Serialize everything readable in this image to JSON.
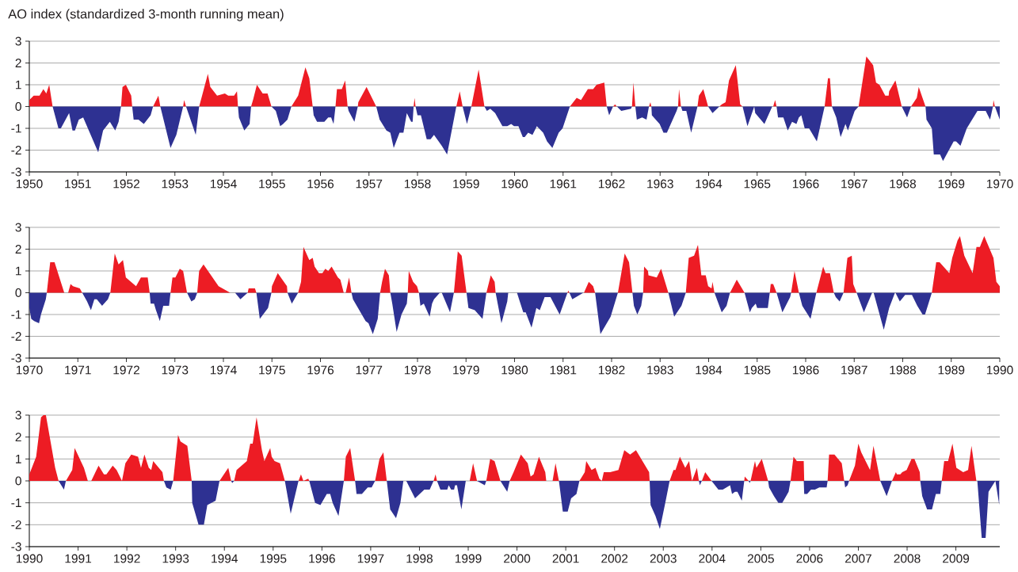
{
  "chart_data": [
    {
      "type": "area",
      "title": "AO index (standardized 3-month running mean)",
      "xlim": [
        1950,
        1970
      ],
      "ylim": [
        -3,
        3
      ],
      "xticks": [
        1950,
        1951,
        1952,
        1953,
        1954,
        1955,
        1956,
        1957,
        1958,
        1959,
        1960,
        1961,
        1962,
        1963,
        1964,
        1965,
        1966,
        1967,
        1968,
        1969,
        1970
      ],
      "yticks": [
        -3,
        -2,
        -1,
        0,
        1,
        2,
        3
      ],
      "grid": "y",
      "x": [
        1950.0,
        1950.09,
        1950.21,
        1950.29,
        1950.35,
        1950.41,
        1950.48,
        1950.6,
        1950.65,
        1950.82,
        1950.89,
        1950.94,
        1951.02,
        1951.11,
        1951.42,
        1951.52,
        1951.66,
        1951.77,
        1951.84,
        1951.89,
        1951.92,
        1951.99,
        1952.1,
        1952.12,
        1952.15,
        1952.25,
        1952.36,
        1952.5,
        1952.55,
        1952.66,
        1952.7,
        1952.91,
        1953.03,
        1953.17,
        1953.19,
        1953.23,
        1953.43,
        1953.5,
        1953.68,
        1953.73,
        1953.87,
        1954.03,
        1954.1,
        1954.22,
        1954.28,
        1954.3,
        1954.32,
        1954.43,
        1954.54,
        1954.57,
        1954.61,
        1954.69,
        1954.81,
        1954.91,
        1954.99,
        1955.08,
        1955.17,
        1955.23,
        1955.32,
        1955.4,
        1955.54,
        1955.69,
        1955.77,
        1955.84,
        1955.86,
        1955.93,
        1956.08,
        1956.16,
        1956.22,
        1956.27,
        1956.31,
        1956.34,
        1956.44,
        1956.51,
        1956.56,
        1956.58,
        1956.7,
        1956.77,
        1956.78,
        1956.95,
        1957.15,
        1957.22,
        1957.36,
        1957.44,
        1957.51,
        1957.63,
        1957.71,
        1957.78,
        1957.87,
        1957.9,
        1957.92,
        1957.94,
        1957.96,
        1958.0,
        1958.07,
        1958.19,
        1958.27,
        1958.34,
        1958.5,
        1958.61,
        1958.8,
        1958.87,
        1958.93,
        1959.02,
        1959.11,
        1959.26,
        1959.38,
        1959.43,
        1959.5,
        1959.6,
        1959.75,
        1959.85,
        1959.93,
        1959.99,
        1960.08,
        1960.17,
        1960.21,
        1960.28,
        1960.37,
        1960.46,
        1960.59,
        1960.67,
        1960.78,
        1960.91,
        1960.99,
        1961.14,
        1961.28,
        1961.37,
        1961.51,
        1961.62,
        1961.69,
        1961.85,
        1961.9,
        1961.95,
        1962.03,
        1962.07,
        1962.11,
        1962.2,
        1962.4,
        1962.42,
        1962.45,
        1962.49,
        1962.52,
        1962.63,
        1962.72,
        1962.77,
        1962.8,
        1962.82,
        1962.83,
        1962.99,
        1963.07,
        1963.14,
        1963.34,
        1963.37,
        1963.39,
        1963.43,
        1963.46,
        1963.54,
        1963.64,
        1963.77,
        1963.8,
        1963.89,
        1963.99,
        1964.08,
        1964.22,
        1964.27,
        1964.35,
        1964.42,
        1964.56,
        1964.65,
        1964.7,
        1964.8,
        1964.94,
        1964.96,
        1965.15,
        1965.31,
        1965.33,
        1965.37,
        1965.4,
        1965.43,
        1965.54,
        1965.63,
        1965.72,
        1965.81,
        1965.86,
        1965.91,
        1965.98,
        1966.07,
        1966.23,
        1966.39,
        1966.46,
        1966.5,
        1966.54,
        1966.63,
        1966.72,
        1966.82,
        1966.87,
        1967.01,
        1967.09,
        1967.25,
        1967.39,
        1967.45,
        1967.52,
        1967.64,
        1967.71,
        1967.72,
        1967.85,
        1967.98,
        1968.09,
        1968.17,
        1968.29,
        1968.33,
        1968.47,
        1968.49,
        1968.6,
        1968.64,
        1968.77,
        1968.83,
        1969.05,
        1969.1,
        1969.19,
        1969.32,
        1969.43,
        1969.54,
        1969.65,
        1969.71,
        1969.8,
        1969.86,
        1969.87,
        1969.9,
        1970.0
      ],
      "series": [
        {
          "color": "#ed1c24",
          "values": [
            0.3,
            0.5,
            0.5,
            0.8,
            0.6,
            1.0,
            0,
            0,
            0,
            0,
            0,
            0,
            0,
            0,
            0,
            0,
            0,
            0,
            0,
            0,
            0.9,
            1.0,
            0.5,
            0,
            0,
            0,
            0,
            0,
            0,
            0.5,
            0,
            0,
            0,
            0,
            0.3,
            0,
            0,
            0,
            1.5,
            0.9,
            0.5,
            0.6,
            0.5,
            0.5,
            0.7,
            0,
            0,
            0,
            0,
            0,
            0.3,
            1.0,
            0.6,
            0.6,
            0,
            0,
            0,
            0,
            0,
            0,
            0.5,
            1.8,
            1.3,
            0,
            0,
            0,
            0,
            0,
            0,
            0,
            0,
            0.8,
            0.8,
            1.2,
            0,
            0,
            0,
            0,
            0.2,
            0.9,
            0,
            0,
            0,
            0,
            0,
            0,
            0,
            0,
            0,
            0,
            0,
            0.4,
            0,
            0,
            0,
            0,
            0,
            0,
            0,
            0,
            0,
            0.7,
            0,
            0,
            0,
            1.7,
            0,
            0,
            0,
            0,
            0,
            0,
            0,
            0,
            0,
            0,
            0,
            0,
            0,
            0,
            0,
            0,
            0,
            0,
            0,
            0,
            0.4,
            0.3,
            0.8,
            0.8,
            1.0,
            1.1,
            0,
            0,
            0,
            0.1,
            0,
            0,
            0,
            0,
            1.1,
            0,
            0,
            0,
            0,
            0,
            0.2,
            0,
            0,
            0,
            0,
            0,
            0,
            0,
            0.8,
            0,
            0,
            0,
            0,
            0,
            0.5,
            0.8,
            0,
            0,
            0,
            0.1,
            0.2,
            1.2,
            1.9,
            0.1,
            0,
            0,
            0,
            0,
            0,
            0,
            0,
            0.3,
            0,
            0,
            0,
            0,
            0,
            0,
            0,
            0,
            0,
            0,
            0,
            0,
            1.3,
            1.3,
            0,
            0,
            0,
            0,
            0,
            0,
            0,
            2.3,
            1.9,
            1.1,
            1.0,
            0.5,
            0.5,
            0.7,
            1.2,
            0,
            0,
            0,
            0.4,
            0.9,
            0,
            0,
            0,
            0,
            0,
            0,
            0,
            0,
            0,
            0,
            0,
            0,
            0,
            0,
            0,
            0,
            0.3,
            0,
            0
          ]
        },
        {
          "color": "#2e3192",
          "values": [
            0,
            0,
            0,
            0,
            0,
            0,
            0,
            -1.0,
            -1.0,
            -0.3,
            -1.1,
            -1.1,
            -0.6,
            -0.5,
            -2.1,
            -1.1,
            -0.7,
            -1.1,
            -0.7,
            0,
            0,
            0,
            0,
            0,
            -0.6,
            -0.6,
            -0.8,
            -0.4,
            0,
            0,
            0,
            -1.9,
            -1.3,
            0,
            0,
            0,
            -1.3,
            0,
            0,
            0,
            0,
            0,
            0,
            0,
            0,
            0,
            -0.5,
            -1.1,
            -0.8,
            0,
            0,
            0,
            0,
            0,
            0,
            -0.2,
            -0.9,
            -0.8,
            -0.6,
            0,
            0,
            0,
            0,
            0,
            -0.4,
            -0.7,
            -0.7,
            -0.5,
            -0.5,
            -0.8,
            0,
            0,
            0,
            0,
            0,
            -0.2,
            -0.7,
            0,
            0,
            0,
            0,
            -0.6,
            -1.1,
            -1.2,
            -1.9,
            -1.2,
            -1.2,
            -0.3,
            -0.7,
            -0.7,
            0,
            0,
            0,
            -0.4,
            -0.4,
            -1.5,
            -1.5,
            -1.3,
            -1.8,
            -2.2,
            0,
            0,
            0,
            -0.8,
            0,
            0,
            0,
            -0.2,
            -0.1,
            -0.3,
            -0.9,
            -0.9,
            -0.8,
            -0.9,
            -0.9,
            -1.4,
            -1.4,
            -1.2,
            -1.3,
            -0.9,
            -1.2,
            -1.6,
            -1.9,
            -1.2,
            -1.0,
            0,
            0,
            0,
            0,
            0,
            0,
            0,
            0,
            -0.4,
            0,
            0,
            0,
            -0.2,
            -0.1,
            0,
            0,
            0,
            -0.6,
            -0.5,
            -0.6,
            0,
            0,
            0,
            -0.4,
            -0.8,
            -1.2,
            -1.2,
            -0.2,
            0,
            0,
            0,
            -0.2,
            -0.2,
            -1.2,
            0,
            0,
            0,
            0,
            -0.3,
            0,
            0,
            0,
            0,
            0,
            0,
            0,
            -0.9,
            0,
            -0.3,
            -0.8,
            0,
            0,
            0,
            0,
            -0.5,
            -0.5,
            -1.1,
            -0.7,
            -0.8,
            -0.5,
            -0.4,
            -1.0,
            -1.0,
            -1.6,
            0,
            0,
            0,
            0,
            -0.5,
            -1.4,
            -0.8,
            -1.1,
            -0.2,
            0,
            0,
            0,
            0,
            0,
            0,
            0,
            0,
            0,
            0,
            -0.5,
            0,
            0,
            0,
            0,
            -0.6,
            -1.0,
            -2.2,
            -2.2,
            -2.5,
            -1.6,
            -1.6,
            -1.8,
            -1.0,
            -0.6,
            -0.2,
            -0.2,
            -0.2,
            -0.6,
            0,
            0,
            0,
            -0.6
          ]
        }
      ]
    },
    {
      "type": "area",
      "xlim": [
        1970,
        1990
      ],
      "ylim": [
        -3,
        3
      ],
      "xticks": [
        1970,
        1971,
        1972,
        1973,
        1974,
        1975,
        1976,
        1977,
        1978,
        1979,
        1980,
        1981,
        1982,
        1983,
        1984,
        1985,
        1986,
        1987,
        1988,
        1989,
        1990
      ],
      "yticks": [
        -3,
        -2,
        -1,
        0,
        1,
        2,
        3
      ],
      "grid": "y",
      "x": [
        1970.0,
        1970.04,
        1970.1,
        1970.2,
        1970.24,
        1970.34,
        1970.36,
        1970.43,
        1970.52,
        1970.72,
        1970.8,
        1970.85,
        1970.9,
        1971.04,
        1971.09,
        1971.19,
        1971.27,
        1971.34,
        1971.39,
        1971.5,
        1971.62,
        1971.67,
        1971.76,
        1971.84,
        1971.93,
        1971.99,
        1972.2,
        1972.3,
        1972.44,
        1972.48,
        1972.5,
        1972.57,
        1972.61,
        1972.69,
        1972.76,
        1972.88,
        1972.91,
        1972.95,
        1973.01,
        1973.1,
        1973.17,
        1973.25,
        1973.34,
        1973.41,
        1973.46,
        1973.5,
        1973.59,
        1973.9,
        1974.14,
        1974.24,
        1974.35,
        1974.5,
        1974.52,
        1974.65,
        1974.68,
        1974.75,
        1974.92,
        1974.99,
        1975.0,
        1975.12,
        1975.31,
        1975.32,
        1975.41,
        1975.54,
        1975.6,
        1975.65,
        1975.77,
        1975.84,
        1975.88,
        1975.97,
        1976.04,
        1976.1,
        1976.16,
        1976.23,
        1976.36,
        1976.41,
        1976.48,
        1976.52,
        1976.59,
        1976.64,
        1976.67,
        1976.93,
        1976.99,
        1977.08,
        1977.18,
        1977.23,
        1977.27,
        1977.33,
        1977.41,
        1977.44,
        1977.48,
        1977.57,
        1977.67,
        1977.78,
        1977.8,
        1977.82,
        1977.91,
        1977.99,
        1978.03,
        1978.06,
        1978.13,
        1978.25,
        1978.3,
        1978.34,
        1978.46,
        1978.5,
        1978.67,
        1978.75,
        1978.83,
        1978.91,
        1979.01,
        1979.05,
        1979.18,
        1979.34,
        1979.42,
        1979.51,
        1979.59,
        1979.61,
        1979.73,
        1979.85,
        1979.87,
        1980.05,
        1980.18,
        1980.23,
        1980.35,
        1980.45,
        1980.52,
        1980.62,
        1980.74,
        1980.93,
        1981.09,
        1981.11,
        1981.13,
        1981.19,
        1981.42,
        1981.43,
        1981.53,
        1981.62,
        1981.66,
        1981.77,
        1981.98,
        1982.13,
        1982.27,
        1982.36,
        1982.43,
        1982.46,
        1982.53,
        1982.61,
        1982.65,
        1982.67,
        1982.75,
        1982.76,
        1982.93,
        1983.02,
        1983.17,
        1983.29,
        1983.44,
        1983.53,
        1983.59,
        1983.7,
        1983.78,
        1983.85,
        1983.94,
        1983.99,
        1984.06,
        1984.08,
        1984.12,
        1984.27,
        1984.37,
        1984.44,
        1984.58,
        1984.74,
        1984.85,
        1984.89,
        1984.97,
        1985.0,
        1985.11,
        1985.22,
        1985.26,
        1985.28,
        1985.33,
        1985.4,
        1985.52,
        1985.68,
        1985.7,
        1985.77,
        1985.86,
        1985.93,
        1986.1,
        1986.22,
        1986.36,
        1986.41,
        1986.5,
        1986.58,
        1986.62,
        1986.7,
        1986.78,
        1986.86,
        1986.95,
        1986.98,
        1987.05,
        1987.2,
        1987.37,
        1987.4,
        1987.61,
        1987.72,
        1987.84,
        1987.85,
        1987.94,
        1988.05,
        1988.19,
        1988.3,
        1988.41,
        1988.46,
        1988.6,
        1988.69,
        1988.76,
        1988.96,
        1989.02,
        1989.13,
        1989.18,
        1989.27,
        1989.44,
        1989.52,
        1989.59,
        1989.68,
        1989.87,
        1989.93,
        1990.0
      ],
      "series": [
        {
          "color": "#ed1c24",
          "values": [
            0,
            0,
            0,
            0,
            0,
            0,
            0,
            1.4,
            1.4,
            0,
            0,
            0.4,
            0.3,
            0.2,
            0,
            0,
            0,
            0,
            0,
            0,
            0,
            0,
            1.8,
            1.3,
            1.5,
            0.7,
            0.3,
            0.7,
            0.7,
            0,
            0,
            0,
            0,
            0,
            0,
            0,
            0,
            0.7,
            0.7,
            1.1,
            1.0,
            0,
            0,
            0,
            0,
            1.0,
            1.3,
            0.3,
            0,
            0,
            0,
            0,
            0.2,
            0.2,
            0,
            0,
            0,
            0,
            0.3,
            0.9,
            0.3,
            0,
            0,
            0,
            0.5,
            2.1,
            1.5,
            1.6,
            1.2,
            0.9,
            0.9,
            1.1,
            1.0,
            1.2,
            0.7,
            0.6,
            0,
            0,
            0.7,
            0,
            0,
            0,
            0,
            0,
            0,
            0,
            0.5,
            1.1,
            0.8,
            0,
            0,
            0,
            0,
            0,
            0,
            1.0,
            0.5,
            0.3,
            0,
            0,
            0,
            0,
            0,
            0,
            0,
            0,
            0,
            0,
            1.9,
            1.7,
            0,
            0,
            0,
            0,
            0,
            0.8,
            0.5,
            0,
            0,
            0,
            0,
            0,
            0,
            0,
            0,
            0,
            0,
            0,
            0,
            0,
            0,
            0.1,
            0,
            0,
            0,
            0,
            0.5,
            0.3,
            0,
            0,
            0,
            0,
            1.8,
            1.4,
            0,
            0,
            0,
            0,
            0,
            1.2,
            1.0,
            0.8,
            0.7,
            1.1,
            0,
            0,
            0,
            0,
            1.6,
            1.7,
            2.2,
            0.8,
            0.8,
            0.3,
            0.2,
            0.5,
            0,
            0,
            0,
            0,
            0.6,
            0,
            0,
            0,
            0,
            0,
            0,
            0,
            0,
            0.4,
            0.4,
            0,
            0,
            0,
            0,
            1.0,
            0,
            0,
            0,
            0,
            1.2,
            0.9,
            0.9,
            0,
            0,
            0,
            0,
            1.6,
            1.7,
            0.4,
            0,
            0,
            0,
            0,
            0,
            0,
            0,
            0,
            0,
            0,
            0,
            0,
            0,
            0,
            0,
            1.4,
            1.4,
            0.9,
            1.6,
            2.4,
            2.6,
            1.7,
            0.9,
            2.1,
            2.1,
            2.6,
            1.6,
            0.5,
            0.3
          ]
        },
        {
          "color": "#2e3192",
          "values": [
            -0.7,
            -1.2,
            -1.3,
            -1.4,
            -1.0,
            -0.3,
            0,
            0,
            0,
            0,
            0,
            0,
            0,
            0,
            0,
            -0.4,
            -0.8,
            -0.3,
            -0.3,
            -0.6,
            -0.3,
            0,
            0,
            0,
            0,
            0,
            0,
            0,
            0,
            0,
            -0.5,
            -0.5,
            -0.8,
            -1.3,
            -0.6,
            -0.6,
            0,
            0,
            0,
            0,
            0,
            0,
            -0.4,
            -0.3,
            0,
            0,
            0,
            0,
            0,
            0,
            -0.3,
            0,
            0,
            0,
            0,
            -1.2,
            -0.7,
            0,
            0,
            0,
            0,
            0,
            -0.5,
            0,
            0,
            0,
            0,
            0,
            0,
            0,
            0,
            0,
            0,
            0,
            0,
            0,
            0,
            0,
            0,
            0,
            -0.3,
            -1.3,
            -1.4,
            -1.9,
            -1.2,
            0,
            0,
            0,
            0,
            0,
            -0.5,
            -1.8,
            -1.0,
            -0.5,
            0,
            0,
            0,
            0,
            0,
            -0.6,
            -0.5,
            -1.1,
            -0.5,
            -0.3,
            0,
            0,
            -0.9,
            0,
            0,
            0,
            0,
            -0.7,
            -0.8,
            -1.2,
            0,
            0,
            0,
            0,
            -1.4,
            -0.4,
            0,
            0,
            -0.9,
            -0.9,
            -1.6,
            -0.7,
            -0.8,
            -0.2,
            -0.2,
            -1.0,
            0,
            0,
            0,
            -0.3,
            0,
            0,
            0,
            0,
            0,
            -1.9,
            -1.1,
            0,
            0,
            0,
            0,
            -0.6,
            -1.0,
            -0.6,
            0,
            0,
            0,
            0,
            0,
            0,
            0,
            -1.1,
            -0.6,
            0,
            0,
            0,
            0,
            0,
            0,
            0,
            0,
            0,
            0,
            -0.9,
            -0.6,
            0,
            0,
            0,
            -0.9,
            -0.7,
            -0.5,
            -0.7,
            -0.7,
            -0.7,
            0,
            0,
            0,
            0,
            -0.9,
            -0.2,
            0,
            0,
            0,
            -0.6,
            -1.2,
            0,
            0,
            0,
            0,
            0,
            -0.2,
            -0.4,
            0,
            0,
            0,
            0,
            0,
            -0.9,
            0,
            0,
            -1.7,
            -0.7,
            0,
            0,
            -0.4,
            -0.1,
            -0.1,
            -0.6,
            -1.0,
            -1.0,
            0,
            0,
            0,
            0,
            0,
            0,
            0,
            0,
            0,
            0,
            0,
            0,
            0,
            0,
            0
          ]
        }
      ]
    },
    {
      "type": "area",
      "xlim": [
        1990,
        2009.9
      ],
      "ylim": [
        -3,
        3
      ],
      "xticks": [
        1990,
        1991,
        1992,
        1993,
        1994,
        1995,
        1996,
        1997,
        1998,
        1999,
        2000,
        2001,
        2002,
        2003,
        2004,
        2005,
        2006,
        2007,
        2008,
        2009
      ],
      "yticks": [
        -3,
        -2,
        -1,
        0,
        1,
        2,
        3
      ],
      "grid": "y",
      "x": [
        1990.0,
        1990.14,
        1990.24,
        1990.29,
        1990.34,
        1990.53,
        1990.6,
        1990.71,
        1990.75,
        1990.88,
        1990.93,
        1991.12,
        1991.2,
        1991.27,
        1991.42,
        1991.53,
        1991.58,
        1991.71,
        1991.79,
        1991.9,
        1991.97,
        1992.09,
        1992.23,
        1992.29,
        1992.36,
        1992.45,
        1992.5,
        1992.54,
        1992.73,
        1992.76,
        1992.81,
        1992.9,
        1992.95,
        1993.05,
        1993.1,
        1993.24,
        1993.33,
        1993.34,
        1993.47,
        1993.58,
        1993.65,
        1993.82,
        1993.9,
        1994.08,
        1994.14,
        1994.16,
        1994.2,
        1994.25,
        1994.46,
        1994.53,
        1994.58,
        1994.66,
        1994.77,
        1994.82,
        1994.94,
        1994.97,
        1995.03,
        1995.14,
        1995.24,
        1995.36,
        1995.52,
        1995.57,
        1995.62,
        1995.72,
        1995.74,
        1995.86,
        1995.97,
        1996.1,
        1996.17,
        1996.22,
        1996.34,
        1996.45,
        1996.49,
        1996.58,
        1996.68,
        1996.71,
        1996.82,
        1996.94,
        1997.02,
        1997.09,
        1997.18,
        1997.26,
        1997.33,
        1997.4,
        1997.52,
        1997.61,
        1997.67,
        1997.73,
        1997.91,
        1998.1,
        1998.21,
        1998.29,
        1998.33,
        1998.36,
        1998.43,
        1998.57,
        1998.6,
        1998.65,
        1998.71,
        1998.73,
        1998.77,
        1998.86,
        1998.95,
        1999.03,
        1999.1,
        1999.18,
        1999.34,
        1999.37,
        1999.45,
        1999.54,
        1999.66,
        1999.8,
        1999.85,
        1999.93,
        2000.08,
        2000.22,
        2000.28,
        2000.34,
        2000.45,
        2000.58,
        2000.6,
        2000.73,
        2000.79,
        2000.86,
        2000.94,
        2001.04,
        2001.11,
        2001.22,
        2001.28,
        2001.39,
        2001.42,
        2001.53,
        2001.61,
        2001.69,
        2001.74,
        2001.78,
        2001.91,
        2002.08,
        2002.2,
        2002.32,
        2002.44,
        2002.71,
        2002.72,
        2002.74,
        2002.84,
        2002.93,
        2003.05,
        2003.13,
        2003.21,
        2003.25,
        2003.34,
        2003.45,
        2003.53,
        2003.59,
        2003.69,
        2003.73,
        2003.75,
        2003.79,
        2003.86,
        2003.99,
        2004.13,
        2004.22,
        2004.37,
        2004.41,
        2004.47,
        2004.52,
        2004.61,
        2004.66,
        2004.67,
        2004.75,
        2004.77,
        2004.79,
        2004.88,
        2004.91,
        2005.02,
        2005.15,
        2005.17,
        2005.27,
        2005.36,
        2005.44,
        2005.57,
        2005.61,
        2005.67,
        2005.74,
        2005.88,
        2005.89,
        2005.95,
        2006.03,
        2006.11,
        2006.2,
        2006.35,
        2006.37,
        2006.4,
        2006.51,
        2006.66,
        2006.71,
        2006.73,
        2006.78,
        2006.81,
        2006.93,
        2007.0,
        2007.06,
        2007.24,
        2007.31,
        2007.45,
        2007.58,
        2007.69,
        2007.77,
        2007.79,
        2007.86,
        2007.9,
        2007.99,
        2008.09,
        2008.15,
        2008.26,
        2008.27,
        2008.31,
        2008.41,
        2008.51,
        2008.59,
        2008.68,
        2008.71,
        2008.76,
        2008.84,
        2008.93,
        2009.01,
        2009.15,
        2009.25,
        2009.32,
        2009.42,
        2009.44,
        2009.53,
        2009.61,
        2009.67,
        2009.81,
        2009.89
      ],
      "series": [
        {
          "color": "#ed1c24",
          "values": [
            0.3,
            1.1,
            2.9,
            3.0,
            3.0,
            0.6,
            0,
            0,
            0,
            0.5,
            1.5,
            0.6,
            0,
            0,
            0.7,
            0.3,
            0.3,
            0.7,
            0.5,
            0,
            0.8,
            1.2,
            1.1,
            0.6,
            1.2,
            0.6,
            0.5,
            0.9,
            0.4,
            0,
            0,
            0,
            0,
            2.1,
            1.8,
            1.6,
            0,
            0,
            0,
            0,
            0,
            0,
            0,
            0.6,
            0,
            0,
            0,
            0.5,
            0.9,
            1.7,
            1.7,
            2.9,
            1.4,
            0.9,
            1.5,
            1.1,
            0.9,
            0.8,
            0,
            0,
            0,
            0.3,
            0,
            0.1,
            0,
            0,
            0,
            0,
            0,
            0,
            0,
            0,
            1.1,
            1.5,
            0,
            0,
            0,
            0,
            0,
            0,
            1.0,
            1.3,
            0,
            0,
            0,
            0,
            0,
            0,
            0,
            0,
            0,
            0,
            0.3,
            0,
            0,
            0,
            0,
            0,
            0,
            0,
            0,
            0,
            0,
            0,
            0.8,
            0,
            0,
            0,
            1.0,
            0.9,
            0,
            0,
            0,
            0.4,
            1.2,
            0.8,
            0.2,
            0.3,
            1.1,
            0.4,
            0,
            0,
            0.8,
            0,
            0,
            0,
            0,
            0,
            0,
            0.4,
            0.9,
            0.5,
            0.6,
            0.1,
            0,
            0.4,
            0.4,
            0.5,
            1.4,
            1.2,
            1.4,
            0.4,
            0,
            0,
            0,
            0,
            0,
            0,
            0.5,
            0.5,
            1.1,
            0.6,
            0.9,
            0,
            0.6,
            0,
            0,
            0,
            0.4,
            0,
            0,
            0,
            0,
            0,
            0,
            0,
            0,
            0,
            0.2,
            0,
            0,
            0,
            0.9,
            0.6,
            1.0,
            0,
            0,
            0,
            0,
            0,
            0,
            0,
            1.1,
            0.9,
            0.9,
            0,
            0,
            0,
            0,
            0,
            0,
            0,
            1.2,
            1.2,
            0.8,
            0,
            0,
            0,
            0,
            0.7,
            1.7,
            1.3,
            0.5,
            1.6,
            0,
            0,
            0,
            0.4,
            0.3,
            0.3,
            0.4,
            0.5,
            1.0,
            1.0,
            0.4,
            0,
            0,
            0,
            0,
            0,
            0,
            0,
            0.9,
            0.9,
            1.7,
            0.6,
            0.4,
            0.5,
            1.6,
            0,
            0,
            0,
            0,
            0,
            0,
            0
          ]
        },
        {
          "color": "#2e3192",
          "values": [
            0,
            0,
            0,
            0,
            0,
            0,
            0,
            -0.4,
            0,
            0,
            0,
            0,
            0,
            0,
            0,
            0,
            0,
            0,
            0,
            0,
            0,
            0,
            0,
            0,
            0,
            0,
            0,
            0,
            0,
            0,
            -0.3,
            -0.4,
            0,
            0,
            0,
            0,
            0,
            -1.0,
            -2.0,
            -2.0,
            -1.1,
            -0.9,
            0,
            0,
            0,
            -0.1,
            0,
            0,
            0,
            0,
            0,
            0,
            0,
            0,
            0,
            0,
            0,
            0,
            0,
            -1.5,
            0,
            0,
            0,
            0,
            0,
            -1.0,
            -1.1,
            -0.6,
            -0.6,
            -1.0,
            -1.6,
            0,
            0,
            0,
            0,
            -0.6,
            -0.6,
            -0.3,
            -0.3,
            0,
            0,
            0,
            0,
            -1.3,
            -1.7,
            -1.0,
            0,
            0,
            -0.8,
            -0.4,
            -0.4,
            0,
            0,
            0,
            -0.4,
            -0.4,
            -0.2,
            -0.4,
            -0.4,
            -0.2,
            -0.2,
            -1.3,
            0,
            0,
            0,
            0,
            -0.2,
            0,
            0,
            0,
            0,
            -0.5,
            0,
            0,
            0,
            0,
            0,
            0,
            0,
            0,
            0,
            0,
            0,
            0,
            -1.4,
            -1.4,
            -0.8,
            -0.6,
            0,
            0,
            0,
            0,
            0,
            0,
            0,
            0,
            0,
            0,
            0,
            0,
            0,
            0,
            0,
            -1.1,
            -1.6,
            -2.2,
            -0.9,
            0,
            0,
            0,
            0,
            0,
            0,
            0,
            0,
            0,
            -0.2,
            0,
            0,
            0,
            -0.4,
            -0.4,
            -0.2,
            -0.6,
            -0.5,
            -0.5,
            -0.9,
            0,
            0,
            0,
            -0.1,
            0,
            0,
            0,
            0,
            0,
            -0.3,
            -0.7,
            -1.0,
            -1.0,
            -0.5,
            0,
            0,
            0,
            0,
            -0.6,
            -0.6,
            -0.4,
            -0.4,
            -0.3,
            -0.3,
            0,
            0,
            0,
            0,
            0,
            -0.3,
            -0.2,
            0,
            0,
            0,
            0,
            0,
            0,
            0,
            -0.7,
            0,
            0,
            0,
            0,
            0,
            0,
            0,
            0,
            0,
            0,
            -0.7,
            -1.3,
            -1.3,
            -0.6,
            -0.6,
            0,
            0,
            0,
            0,
            0,
            0,
            0,
            0,
            0,
            0,
            -2.6,
            -2.6,
            -0.5,
            0,
            -1.1
          ]
        }
      ]
    }
  ]
}
